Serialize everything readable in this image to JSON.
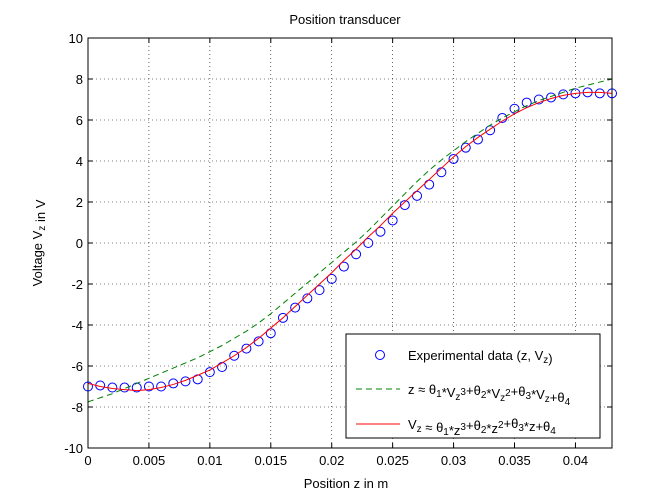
{
  "chart_data": {
    "type": "line",
    "title": "Position transducer",
    "xlabel": "Position z in m",
    "ylabel": "Voltage V_z in V",
    "xlim": [
      0,
      0.043
    ],
    "ylim": [
      -10,
      10
    ],
    "grid": true,
    "legend_position": "bottom-right",
    "x_ticks": [
      0,
      0.005,
      0.01,
      0.015,
      0.02,
      0.025,
      0.03,
      0.035,
      0.04
    ],
    "x_tick_labels": [
      "0",
      "0.005",
      "0.01",
      "0.015",
      "0.02",
      "0.025",
      "0.03",
      "0.035",
      "0.04"
    ],
    "y_ticks": [
      -10,
      -8,
      -6,
      -4,
      -2,
      0,
      2,
      4,
      6,
      8,
      10
    ],
    "y_tick_labels": [
      "-10",
      "-8",
      "-6",
      "-4",
      "-2",
      "0",
      "2",
      "4",
      "6",
      "8",
      "10"
    ],
    "series": [
      {
        "name": "Experimental data (z, V_z)",
        "style": "markers",
        "color": "#0000ff",
        "x": [
          0.0,
          0.001,
          0.002,
          0.003,
          0.004,
          0.005,
          0.006,
          0.007,
          0.008,
          0.009,
          0.01,
          0.011,
          0.012,
          0.013,
          0.014,
          0.015,
          0.016,
          0.017,
          0.018,
          0.019,
          0.02,
          0.021,
          0.022,
          0.023,
          0.024,
          0.025,
          0.026,
          0.027,
          0.028,
          0.029,
          0.03,
          0.031,
          0.032,
          0.033,
          0.034,
          0.035,
          0.036,
          0.037,
          0.038,
          0.039,
          0.04,
          0.041,
          0.042,
          0.043
        ],
        "y": [
          -7.0,
          -6.95,
          -7.05,
          -7.05,
          -7.05,
          -7.0,
          -7.0,
          -6.85,
          -6.75,
          -6.65,
          -6.3,
          -6.05,
          -5.5,
          -5.15,
          -4.8,
          -4.4,
          -3.65,
          -3.15,
          -2.7,
          -2.3,
          -1.75,
          -1.15,
          -0.55,
          0.0,
          0.55,
          1.1,
          1.85,
          2.3,
          2.85,
          3.45,
          4.1,
          4.65,
          5.05,
          5.5,
          6.1,
          6.55,
          6.85,
          7.0,
          7.1,
          7.25,
          7.3,
          7.35,
          7.3,
          7.3
        ]
      },
      {
        "name": "z ≈ θ1*Vz^3+θ2*Vz^2+θ3*Vz+θ4",
        "style": "dashed",
        "color": "#008000",
        "x": [
          0.0,
          0.001,
          0.002,
          0.003,
          0.004,
          0.005,
          0.006,
          0.007,
          0.008,
          0.009,
          0.01,
          0.011,
          0.012,
          0.013,
          0.014,
          0.015,
          0.016,
          0.017,
          0.018,
          0.019,
          0.02,
          0.021,
          0.022,
          0.023,
          0.024,
          0.025,
          0.026,
          0.027,
          0.028,
          0.029,
          0.03,
          0.031,
          0.032,
          0.033,
          0.034,
          0.035,
          0.036,
          0.037,
          0.038,
          0.039,
          0.04,
          0.041,
          0.042,
          0.043
        ],
        "y": [
          -7.75,
          -7.55,
          -7.35,
          -7.1,
          -6.85,
          -6.6,
          -6.35,
          -6.1,
          -5.85,
          -5.6,
          -5.3,
          -5.0,
          -4.65,
          -4.3,
          -3.9,
          -3.45,
          -2.95,
          -2.45,
          -1.95,
          -1.45,
          -0.95,
          -0.45,
          0.05,
          0.6,
          1.2,
          1.8,
          2.4,
          3.0,
          3.55,
          4.05,
          4.5,
          4.95,
          5.35,
          5.75,
          6.1,
          6.4,
          6.7,
          6.95,
          7.15,
          7.35,
          7.55,
          7.7,
          7.85,
          8.0
        ]
      },
      {
        "name": "Vz ≈ θ1*z^3+θ2*z^2+θ3*z+θ4",
        "style": "solid",
        "color": "#ff0000",
        "x": [
          0.0,
          0.001,
          0.002,
          0.003,
          0.004,
          0.005,
          0.006,
          0.007,
          0.008,
          0.009,
          0.01,
          0.011,
          0.012,
          0.013,
          0.014,
          0.015,
          0.016,
          0.017,
          0.018,
          0.019,
          0.02,
          0.021,
          0.022,
          0.023,
          0.024,
          0.025,
          0.026,
          0.027,
          0.028,
          0.029,
          0.03,
          0.031,
          0.032,
          0.033,
          0.034,
          0.035,
          0.036,
          0.037,
          0.038,
          0.039,
          0.04,
          0.041,
          0.042,
          0.043
        ],
        "y": [
          -6.85,
          -7.0,
          -7.1,
          -7.15,
          -7.2,
          -7.15,
          -7.05,
          -6.9,
          -6.7,
          -6.45,
          -6.2,
          -5.85,
          -5.5,
          -5.1,
          -4.65,
          -4.15,
          -3.65,
          -3.1,
          -2.55,
          -2.0,
          -1.45,
          -0.85,
          -0.3,
          0.3,
          0.85,
          1.45,
          2.0,
          2.55,
          3.1,
          3.65,
          4.2,
          4.7,
          5.15,
          5.55,
          5.95,
          6.3,
          6.6,
          6.85,
          7.05,
          7.2,
          7.3,
          7.35,
          7.35,
          7.3
        ]
      }
    ]
  }
}
